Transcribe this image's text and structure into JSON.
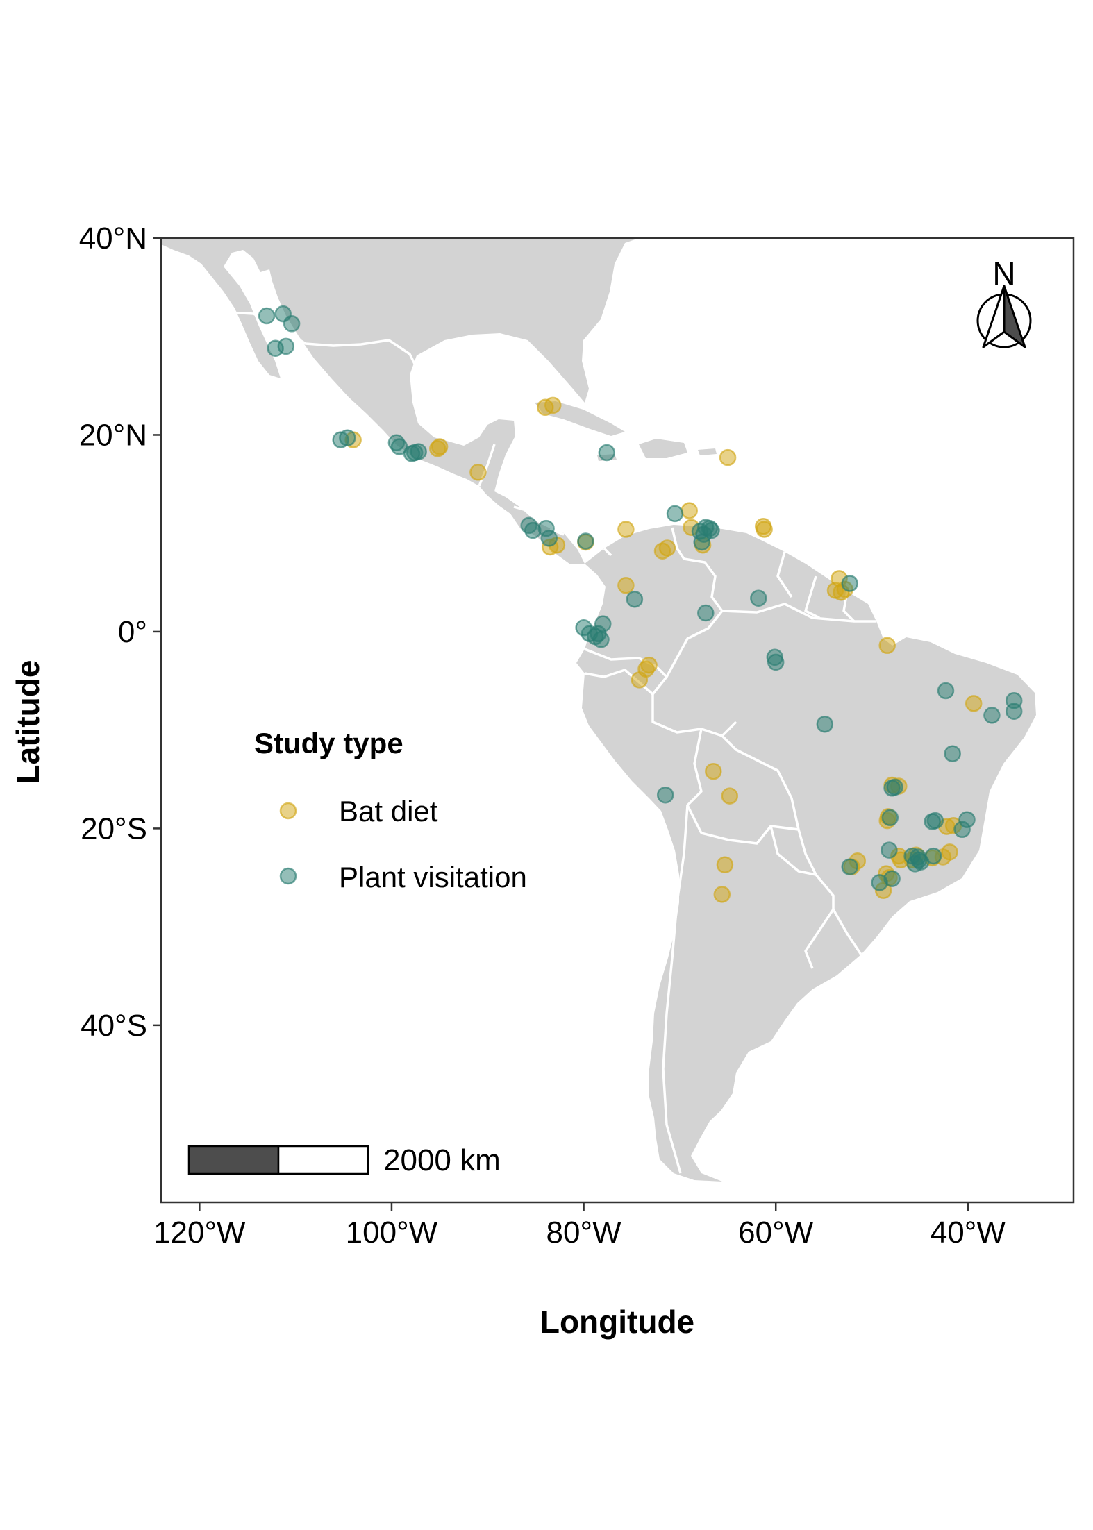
{
  "chart_data": {
    "type": "scatter",
    "title": "",
    "xlabel": "Longitude",
    "ylabel": "Latitude",
    "xlim": [
      -124,
      -29
    ],
    "ylim": [
      -58,
      40
    ],
    "x_ticks": [
      {
        "value": -120,
        "label": "120°W"
      },
      {
        "value": -100,
        "label": "100°W"
      },
      {
        "value": -80,
        "label": "80°W"
      },
      {
        "value": -60,
        "label": "60°W"
      },
      {
        "value": -40,
        "label": "40°W"
      }
    ],
    "y_ticks": [
      {
        "value": 40,
        "label": "40°N"
      },
      {
        "value": 20,
        "label": "20°N"
      },
      {
        "value": 0,
        "label": "0°"
      },
      {
        "value": -20,
        "label": "20°S"
      },
      {
        "value": -40,
        "label": "40°S"
      }
    ],
    "grid": false,
    "basemap": "Latin America (land in grey, country borders in white)",
    "legend": {
      "title": "Study type",
      "placement": "left-center",
      "entries": [
        "Bat diet",
        "Plant visitation"
      ]
    },
    "colors": {
      "Bat diet": "#d1a614",
      "Plant visitation": "#2a7d72",
      "land": "#d3d3d3",
      "borders": "#ffffff"
    },
    "series": [
      {
        "name": "Bat diet",
        "points": [
          [
            -104,
            19.5
          ],
          [
            -95,
            18.8
          ],
          [
            -95.2,
            18.6
          ],
          [
            -91,
            16.2
          ],
          [
            -84,
            22.8
          ],
          [
            -83.2,
            23
          ],
          [
            -65,
            17.7
          ],
          [
            -83.5,
            8.6
          ],
          [
            -82.8,
            8.8
          ],
          [
            -79.8,
            9.1
          ],
          [
            -75.6,
            10.4
          ],
          [
            -71.8,
            8.2
          ],
          [
            -71.3,
            8.5
          ],
          [
            -69,
            12.3
          ],
          [
            -68.8,
            10.6
          ],
          [
            -67.6,
            8.8
          ],
          [
            -61.3,
            10.7
          ],
          [
            -61.2,
            10.4
          ],
          [
            -75.6,
            4.7
          ],
          [
            -73.2,
            -3.4
          ],
          [
            -73.5,
            -3.8
          ],
          [
            -74.2,
            -4.9
          ],
          [
            -53.4,
            5.4
          ],
          [
            -53.8,
            4.2
          ],
          [
            -53.2,
            4.0
          ],
          [
            -52.8,
            4.3
          ],
          [
            -48.4,
            -1.4
          ],
          [
            -39.4,
            -7.3
          ],
          [
            -66.5,
            -14.2
          ],
          [
            -64.8,
            -16.7
          ],
          [
            -65.3,
            -23.7
          ],
          [
            -65.6,
            -26.7
          ],
          [
            -47.9,
            -15.6
          ],
          [
            -47.2,
            -15.7
          ],
          [
            -48.3,
            -18.8
          ],
          [
            -48.4,
            -19.2
          ],
          [
            -42.2,
            -19.8
          ],
          [
            -41.5,
            -19.7
          ],
          [
            -41.9,
            -22.4
          ],
          [
            -42.6,
            -22.9
          ],
          [
            -51.5,
            -23.3
          ],
          [
            -52.1,
            -23.9
          ],
          [
            -48.5,
            -24.6
          ],
          [
            -48.2,
            -25
          ],
          [
            -48.8,
            -26.3
          ],
          [
            -47.2,
            -22.8
          ],
          [
            -47,
            -23.2
          ],
          [
            -45.4,
            -22.7
          ],
          [
            -45.8,
            -23.2
          ],
          [
            -43.7,
            -23
          ]
        ]
      },
      {
        "name": "Plant visitation",
        "points": [
          [
            -113,
            32.1
          ],
          [
            -111.3,
            32.3
          ],
          [
            -110.4,
            31.3
          ],
          [
            -112.1,
            28.8
          ],
          [
            -111,
            29
          ],
          [
            -105.3,
            19.5
          ],
          [
            -104.6,
            19.7
          ],
          [
            -99.5,
            19.2
          ],
          [
            -99.2,
            18.8
          ],
          [
            -97.6,
            18.2
          ],
          [
            -97.2,
            18.3
          ],
          [
            -97.9,
            18.1
          ],
          [
            -77.6,
            18.2
          ],
          [
            -85.7,
            10.8
          ],
          [
            -85.3,
            10.3
          ],
          [
            -83.9,
            10.5
          ],
          [
            -83.6,
            9.5
          ],
          [
            -79.8,
            9.2
          ],
          [
            -70.5,
            12
          ],
          [
            -67.9,
            10.2
          ],
          [
            -67.3,
            10.6
          ],
          [
            -66.7,
            10.3
          ],
          [
            -66.9,
            10.5
          ],
          [
            -67.5,
            9.9
          ],
          [
            -67.7,
            9.1
          ],
          [
            -74.7,
            3.3
          ],
          [
            -61.8,
            3.4
          ],
          [
            -67.3,
            1.9
          ],
          [
            -52.3,
            4.9
          ],
          [
            -80,
            0.4
          ],
          [
            -79.4,
            -0.2
          ],
          [
            -78.8,
            -0.5
          ],
          [
            -78.2,
            -0.8
          ],
          [
            -78,
            0.8
          ],
          [
            -78.5,
            -0.2
          ],
          [
            -60.1,
            -2.6
          ],
          [
            -60,
            -3.1
          ],
          [
            -54.9,
            -9.4
          ],
          [
            -42.3,
            -6
          ],
          [
            -37.5,
            -8.5
          ],
          [
            -35.2,
            -7
          ],
          [
            -35.2,
            -8.1
          ],
          [
            -41.6,
            -12.4
          ],
          [
            -71.5,
            -16.6
          ],
          [
            -47.6,
            -15.8
          ],
          [
            -47.9,
            -15.9
          ],
          [
            -48.1,
            -18.9
          ],
          [
            -43.7,
            -19.3
          ],
          [
            -43.4,
            -19.2
          ],
          [
            -40.1,
            -19.1
          ],
          [
            -40.6,
            -20.1
          ],
          [
            -48.2,
            -22.2
          ],
          [
            -52.3,
            -23.9
          ],
          [
            -47.9,
            -25.1
          ],
          [
            -49.2,
            -25.5
          ],
          [
            -45.8,
            -22.8
          ],
          [
            -45.1,
            -23.2
          ],
          [
            -45.5,
            -23.6
          ],
          [
            -44.9,
            -23.4
          ],
          [
            -45.2,
            -22.9
          ],
          [
            -43.6,
            -22.8
          ]
        ]
      }
    ],
    "scale_bar": {
      "label": "2000 km"
    },
    "north_arrow": {
      "label": "N",
      "icon": "north-arrow-icon"
    }
  }
}
